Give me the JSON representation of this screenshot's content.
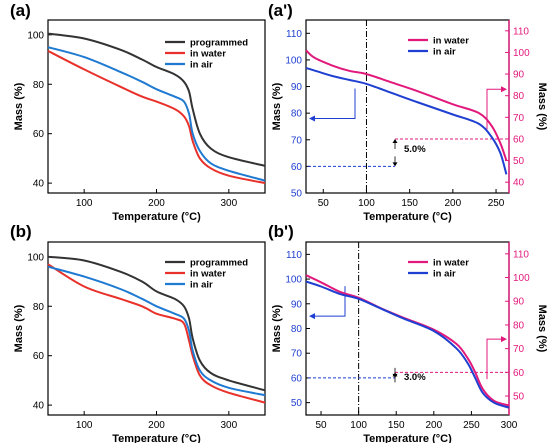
{
  "chart_data": [
    {
      "panel_label": "(a)",
      "type": "line",
      "xlabel": "Temperature (°C)",
      "ylabel": "Mass (%)",
      "xlim": [
        50,
        350
      ],
      "ylim": [
        36,
        106
      ],
      "xticks": [
        100,
        200,
        300
      ],
      "yticks": [
        40,
        60,
        80,
        100
      ],
      "legend_position": "top-right",
      "series": [
        {
          "name": "programmed",
          "color": "#333333",
          "x": [
            50,
            100,
            150,
            180,
            200,
            225,
            238,
            245,
            250,
            260,
            275,
            300,
            350
          ],
          "y": [
            100.5,
            98.5,
            94,
            90,
            87,
            84,
            81,
            77,
            70,
            60,
            54,
            50.5,
            47
          ]
        },
        {
          "name": "in water",
          "color": "#e8312a",
          "x": [
            50,
            100,
            150,
            180,
            200,
            225,
            238,
            245,
            250,
            260,
            275,
            300,
            350
          ],
          "y": [
            93.5,
            86,
            79,
            75,
            73,
            70,
            67,
            63,
            57,
            50,
            46,
            43,
            40
          ]
        },
        {
          "name": "in air",
          "color": "#1f7ad1",
          "x": [
            50,
            100,
            150,
            180,
            200,
            225,
            238,
            245,
            250,
            260,
            275,
            300,
            350
          ],
          "y": [
            95,
            91,
            85,
            81,
            78,
            75,
            73,
            68,
            60,
            53,
            48,
            45,
            41
          ]
        }
      ]
    },
    {
      "panel_label": "(a')",
      "type": "line",
      "xlabel": "Temperature (°C)",
      "ylabel": "Mass (%)",
      "ylabel_right": "Mass (%)",
      "xlim": [
        30,
        265
      ],
      "ylim": [
        50,
        115
      ],
      "ylim_right": [
        35,
        115
      ],
      "xticks": [
        50,
        100,
        150,
        200,
        250
      ],
      "yticks": [
        50,
        60,
        70,
        80,
        90,
        100,
        110
      ],
      "yticks_right": [
        40,
        50,
        60,
        70,
        80,
        90,
        100,
        110
      ],
      "legend_position": "top-right",
      "annotation": "5.0%",
      "vline_x": 100,
      "series": [
        {
          "name": "in water",
          "color": "#e2197c",
          "axis": "right",
          "x": [
            30,
            40,
            60,
            80,
            100,
            130,
            160,
            200,
            230,
            245,
            255,
            262
          ],
          "y": [
            101,
            97.5,
            94,
            91.5,
            90,
            86,
            82,
            76,
            72,
            66,
            58,
            50
          ]
        },
        {
          "name": "in air",
          "color": "#1f3fd1",
          "axis": "left",
          "x": [
            30,
            40,
            60,
            80,
            100,
            130,
            160,
            200,
            230,
            245,
            255,
            262
          ],
          "y": [
            97,
            96,
            94,
            92.5,
            91,
            87.5,
            84,
            79.5,
            76,
            71,
            65,
            57
          ]
        }
      ]
    },
    {
      "panel_label": "(b)",
      "type": "line",
      "xlabel": "Temperature (°C)",
      "ylabel": "Mass (%)",
      "xlim": [
        50,
        350
      ],
      "ylim": [
        36,
        106
      ],
      "xticks": [
        100,
        200,
        300
      ],
      "yticks": [
        40,
        60,
        80,
        100
      ],
      "legend_position": "top-right",
      "series": [
        {
          "name": "programmed",
          "color": "#333333",
          "x": [
            50,
            100,
            150,
            180,
            200,
            225,
            238,
            245,
            250,
            260,
            275,
            300,
            350
          ],
          "y": [
            100,
            98.5,
            94,
            90,
            86,
            83,
            80,
            75,
            67,
            58,
            53,
            50,
            46
          ]
        },
        {
          "name": "in water",
          "color": "#e8312a",
          "x": [
            50,
            100,
            150,
            180,
            200,
            225,
            238,
            245,
            250,
            260,
            275,
            300,
            350
          ],
          "y": [
            97,
            88,
            83,
            80,
            77,
            75,
            73,
            66,
            60,
            52,
            48,
            45,
            41
          ]
        },
        {
          "name": "in air",
          "color": "#1f7ad1",
          "x": [
            50,
            100,
            150,
            180,
            200,
            225,
            238,
            245,
            250,
            260,
            275,
            300,
            350
          ],
          "y": [
            96,
            92,
            87,
            83,
            80,
            77,
            75,
            70,
            62,
            54,
            50,
            47,
            44
          ]
        }
      ]
    },
    {
      "panel_label": "(b')",
      "type": "line",
      "xlabel": "Temperature (°C)",
      "ylabel": "Mass (%)",
      "ylabel_right": "Mass (%)",
      "xlim": [
        30,
        300
      ],
      "ylim": [
        45,
        115
      ],
      "ylim_right": [
        42,
        115
      ],
      "xticks": [
        50,
        100,
        150,
        200,
        250,
        300
      ],
      "yticks": [
        50,
        60,
        70,
        80,
        90,
        100,
        110
      ],
      "yticks_right": [
        50,
        60,
        70,
        80,
        90,
        100,
        110
      ],
      "legend_position": "top-right",
      "annotation": "3.0%",
      "vline_x": 100,
      "series": [
        {
          "name": "in water",
          "color": "#e2197c",
          "axis": "right",
          "x": [
            30,
            50,
            75,
            100,
            130,
            160,
            200,
            230,
            245,
            255,
            265,
            280,
            300
          ],
          "y": [
            101,
            98,
            94,
            91.5,
            87,
            83,
            78,
            72,
            66,
            60,
            53,
            48,
            46
          ]
        },
        {
          "name": "in air",
          "color": "#1f3fd1",
          "axis": "left",
          "x": [
            30,
            50,
            75,
            100,
            130,
            160,
            200,
            230,
            245,
            255,
            265,
            280,
            300
          ],
          "y": [
            99,
            97,
            94,
            92,
            88,
            84,
            79,
            72,
            66,
            60,
            54,
            50,
            48
          ]
        }
      ]
    }
  ]
}
